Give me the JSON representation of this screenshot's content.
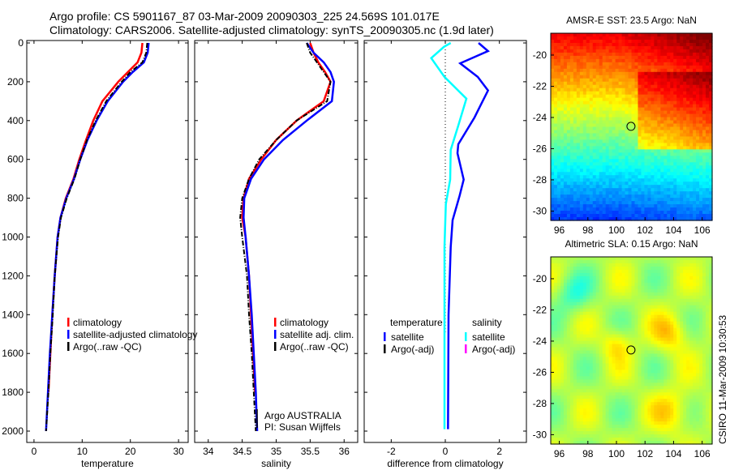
{
  "title_lines": [
    "Argo profile: CS 5901167_87 03-Mar-2009 20090303_225 24.569S 101.017E",
    "Climatology: CARS2006. Satellite-adjusted climatology: synTS_20090305.nc (1.9d later)"
  ],
  "side_label": "CSIRO 11-Mar-2009 10:30:53",
  "colors": {
    "climatology": "#ff0000",
    "satellite": "#0000ff",
    "argo": "#000000",
    "sal_satellite": "#00ffff",
    "sal_argo": "#ff00ff"
  },
  "chart_data": [
    {
      "type": "line",
      "xlabel": "temperature",
      "xlim": [
        -1.5,
        32
      ],
      "ylim": [
        2000,
        0
      ],
      "xticks": [
        "0",
        "10",
        "20",
        "30"
      ],
      "xtick_values": [
        0,
        10,
        20,
        30
      ],
      "yticks": [
        "0",
        "200",
        "400",
        "600",
        "800",
        "1000",
        "1200",
        "1400",
        "1600",
        "1800",
        "2000"
      ],
      "depth": [
        0,
        50,
        100,
        150,
        200,
        300,
        400,
        500,
        600,
        700,
        800,
        900,
        1000,
        1200,
        1400,
        1600,
        1800,
        2000
      ],
      "series": [
        {
          "name": "climatology",
          "values": [
            22.5,
            22.3,
            21.5,
            19.5,
            17.5,
            14.2,
            12.3,
            10.8,
            9.4,
            8.2,
            6.6,
            5.5,
            4.9,
            4.3,
            3.8,
            3.4,
            3.0,
            null
          ]
        },
        {
          "name": "satellite-adjusted climatology",
          "values": [
            23.8,
            23.6,
            22.8,
            20.5,
            18.5,
            15.3,
            13,
            11.1,
            9.6,
            8.3,
            6.7,
            5.5,
            4.9,
            4.3,
            3.8,
            3.3,
            2.9,
            2.5
          ]
        },
        {
          "name": "Argo(..raw -QC)",
          "values": [
            23.5,
            23.3,
            22.5,
            20,
            18.2,
            15,
            12.8,
            11,
            9.6,
            8.4,
            6.8,
            5.6,
            5.0,
            4.3,
            3.9,
            3.4,
            3.0,
            2.5
          ]
        }
      ]
    },
    {
      "type": "line",
      "xlabel": "salinity",
      "xlim": [
        33.8,
        36.2
      ],
      "ylim": [
        2000,
        0
      ],
      "xticks": [
        "34",
        "34.5",
        "35",
        "35.5",
        "36"
      ],
      "xtick_values": [
        34,
        34.5,
        35,
        35.5,
        36
      ],
      "depth": [
        0,
        50,
        100,
        150,
        200,
        300,
        400,
        500,
        600,
        700,
        800,
        900,
        1000,
        1200,
        1400,
        1600,
        1800,
        2000
      ],
      "series": [
        {
          "name": "climatology",
          "values": [
            35.5,
            35.55,
            35.62,
            35.72,
            35.8,
            35.7,
            35.3,
            35.0,
            34.78,
            34.6,
            34.52,
            34.5,
            34.55,
            34.6,
            34.63,
            34.66,
            34.69,
            null
          ]
        },
        {
          "name": "satellite adj. clim.",
          "values": [
            35.45,
            35.55,
            35.7,
            35.8,
            35.85,
            35.82,
            35.45,
            35.1,
            34.82,
            34.63,
            34.53,
            34.52,
            34.55,
            34.6,
            34.64,
            34.67,
            34.7,
            34.72
          ]
        },
        {
          "name": "Argo(..raw -QC)",
          "values": [
            35.45,
            35.5,
            35.6,
            35.7,
            35.8,
            35.75,
            35.3,
            35.0,
            34.75,
            34.6,
            34.5,
            34.47,
            34.5,
            34.57,
            34.6,
            34.64,
            34.67,
            34.7
          ]
        }
      ],
      "annotations": [
        "Argo AUSTRALIA",
        "PI: Susan Wijffels"
      ]
    },
    {
      "type": "line",
      "xlabel": "difference from climatology",
      "xlim": [
        -3,
        3
      ],
      "ylim": [
        2000,
        0
      ],
      "xticks": [
        "-2",
        "0",
        "2"
      ],
      "xtick_values": [
        -2,
        0,
        2
      ],
      "legend_headers": [
        "temperature",
        "salinity"
      ],
      "series": [
        {
          "name": "satellite",
          "group": "temperature",
          "depth": [
            0,
            42,
            105,
            175,
            245,
            328,
            384,
            522,
            568,
            704,
            787,
            913,
            1052,
            1400,
            1990
          ],
          "values": [
            1.23,
            1.58,
            0.55,
            1.2,
            1.58,
            1.28,
            1.08,
            0.48,
            0.45,
            0.68,
            0.53,
            0.27,
            0.2,
            0.12,
            0.1
          ]
        },
        {
          "name": "Argo(-adj)",
          "group": "temperature",
          "depth": [],
          "values": []
        },
        {
          "name": "satellite",
          "group": "salinity",
          "depth": [
            0,
            20,
            78,
            175,
            287,
            426,
            551,
            704,
            830,
            1052,
            1400,
            1990
          ],
          "values": [
            0.2,
            -0.05,
            -0.52,
            -0.03,
            0.78,
            0.48,
            0.2,
            0.18,
            0.02,
            -0.03,
            -0.03,
            -0.03
          ]
        },
        {
          "name": "Argo(-adj)",
          "group": "salinity",
          "depth": [],
          "values": []
        }
      ]
    },
    {
      "type": "heatmap",
      "title": "AMSR-E SST: 23.5 Argo: NaN",
      "xticks": [
        "96",
        "98",
        "100",
        "102",
        "104",
        "106"
      ],
      "yticks": [
        "-20",
        "-22",
        "-24",
        "-26",
        "-28",
        "-30"
      ],
      "xlim": [
        95.4,
        106.7
      ],
      "ylim": [
        -30.6,
        -18.6
      ],
      "marker": [
        101.017,
        -24.569
      ]
    },
    {
      "type": "heatmap",
      "title": "Altimetric SLA: 0.15 Argo: NaN",
      "xticks": [
        "96",
        "98",
        "100",
        "102",
        "104",
        "106"
      ],
      "yticks": [
        "-20",
        "-22",
        "-24",
        "-26",
        "-28",
        "-30"
      ],
      "xlim": [
        95.4,
        106.7
      ],
      "ylim": [
        -30.6,
        -18.6
      ],
      "marker": [
        101.017,
        -24.569
      ]
    }
  ]
}
